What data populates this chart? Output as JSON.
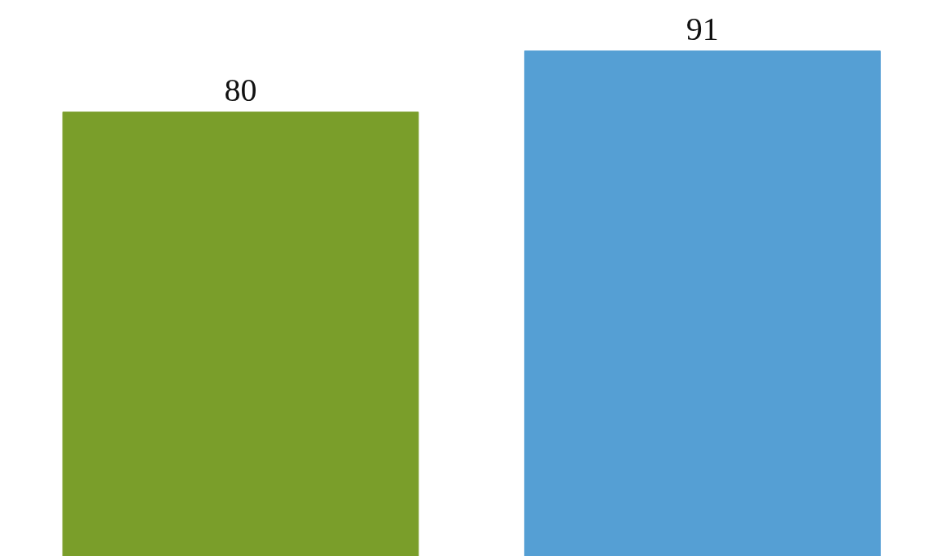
{
  "chart_data": {
    "type": "bar",
    "categories": [
      null,
      null
    ],
    "values": [
      80,
      91
    ],
    "colors": [
      "#7a9e2a",
      "#559fd4"
    ],
    "data_labels": true
  }
}
